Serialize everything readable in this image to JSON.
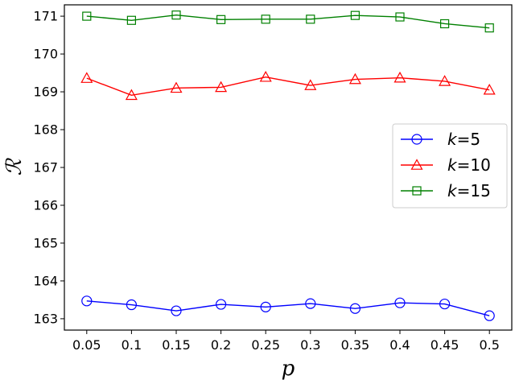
{
  "chart_data": {
    "type": "line",
    "x": [
      0.05,
      0.1,
      0.15,
      0.2,
      0.25,
      0.3,
      0.35,
      0.4,
      0.45,
      0.5
    ],
    "x_tick_labels": [
      "0.05",
      "0.1",
      "0.15",
      "0.2",
      "0.25",
      "0.3",
      "0.35",
      "0.4",
      "0.45",
      "0.5"
    ],
    "xlabel": "p",
    "ylabel": "ℛ",
    "ylim": [
      162.7,
      171.3
    ],
    "yticks": [
      163,
      164,
      165,
      166,
      167,
      168,
      169,
      170,
      171
    ],
    "grid": false,
    "legend_position": "right",
    "series": [
      {
        "name": "k=5",
        "name_var": "k",
        "name_rest": "=5",
        "color": "#0000ff",
        "marker": "circle",
        "values": [
          163.47,
          163.37,
          163.21,
          163.38,
          163.31,
          163.4,
          163.27,
          163.42,
          163.39,
          163.08
        ]
      },
      {
        "name": "k=10",
        "name_var": "k",
        "name_rest": "=10",
        "color": "#ff0000",
        "marker": "triangle",
        "values": [
          169.36,
          168.91,
          169.1,
          169.12,
          169.39,
          169.17,
          169.33,
          169.37,
          169.28,
          169.05
        ]
      },
      {
        "name": "k=15",
        "name_var": "k",
        "name_rest": "=15",
        "color": "#008000",
        "marker": "square",
        "values": [
          171.0,
          170.89,
          171.03,
          170.91,
          170.92,
          170.92,
          171.02,
          170.98,
          170.8,
          170.69
        ]
      }
    ]
  }
}
